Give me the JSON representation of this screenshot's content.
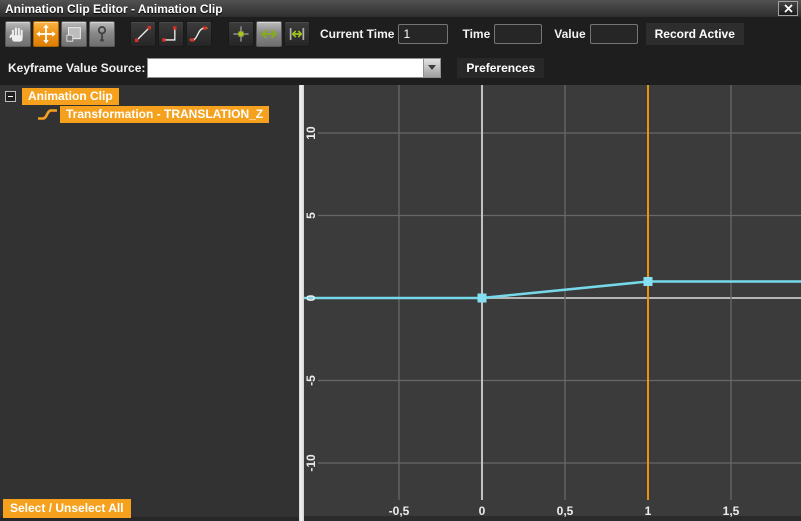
{
  "window": {
    "title": "Animation Clip Editor - Animation Clip"
  },
  "toolbar": {
    "icons": [
      "hand-icon",
      "move-icon",
      "box-select-icon",
      "key-icon",
      "linear-interpolation-icon",
      "step-interpolation-icon",
      "curve-interpolation-icon",
      "snap-keyframe-icon",
      "move-horizontal-icon",
      "scale-horizontal-icon"
    ],
    "current_time_label": "Current Time",
    "current_time_value": "1",
    "time_label": "Time",
    "time_value": "",
    "value_label": "Value",
    "value_value": "",
    "record_active_label": "Record Active"
  },
  "options": {
    "keyframe_value_source_label": "Keyframe Value Source:",
    "keyframe_value_source_value": "",
    "preferences_label": "Preferences"
  },
  "tree": {
    "root_label": "Animation Clip",
    "child_label": "Transformation - TRANSLATION_Z",
    "select_unselect_label": "Select / Unselect All"
  },
  "chart_data": {
    "type": "line",
    "title": "",
    "grid": true,
    "x_ticks": [
      {
        "v": -0.5,
        "label": "-0,5"
      },
      {
        "v": 0,
        "label": "0"
      },
      {
        "v": 0.5,
        "label": "0,5"
      },
      {
        "v": 1,
        "label": "1"
      },
      {
        "v": 1.5,
        "label": "1,5"
      }
    ],
    "y_ticks": [
      {
        "v": 10,
        "label": "10"
      },
      {
        "v": 5,
        "label": "5"
      },
      {
        "v": 0,
        "label": "0"
      },
      {
        "v": -5,
        "label": "-5"
      },
      {
        "v": -10,
        "label": "-10"
      }
    ],
    "xlim": [
      -1.07,
      1.92
    ],
    "ylim": [
      -13.5,
      12.9
    ],
    "current_time": 1,
    "series": [
      {
        "name": "Transformation - TRANSLATION_Z",
        "color": "#76d9ea",
        "keyframes": [
          {
            "x": 0,
            "y": 0
          },
          {
            "x": 1,
            "y": 1
          }
        ],
        "extrapolation": "constant"
      }
    ]
  },
  "colors": {
    "selection_orange": "#f5a11d",
    "current_time_line": "#e8940f",
    "curve_cyan": "#76d9ea",
    "grid_line": "#686868",
    "axis_line": "#b5b5b5",
    "graph_background": "#3b3b3b",
    "panel_background": "#323232"
  }
}
